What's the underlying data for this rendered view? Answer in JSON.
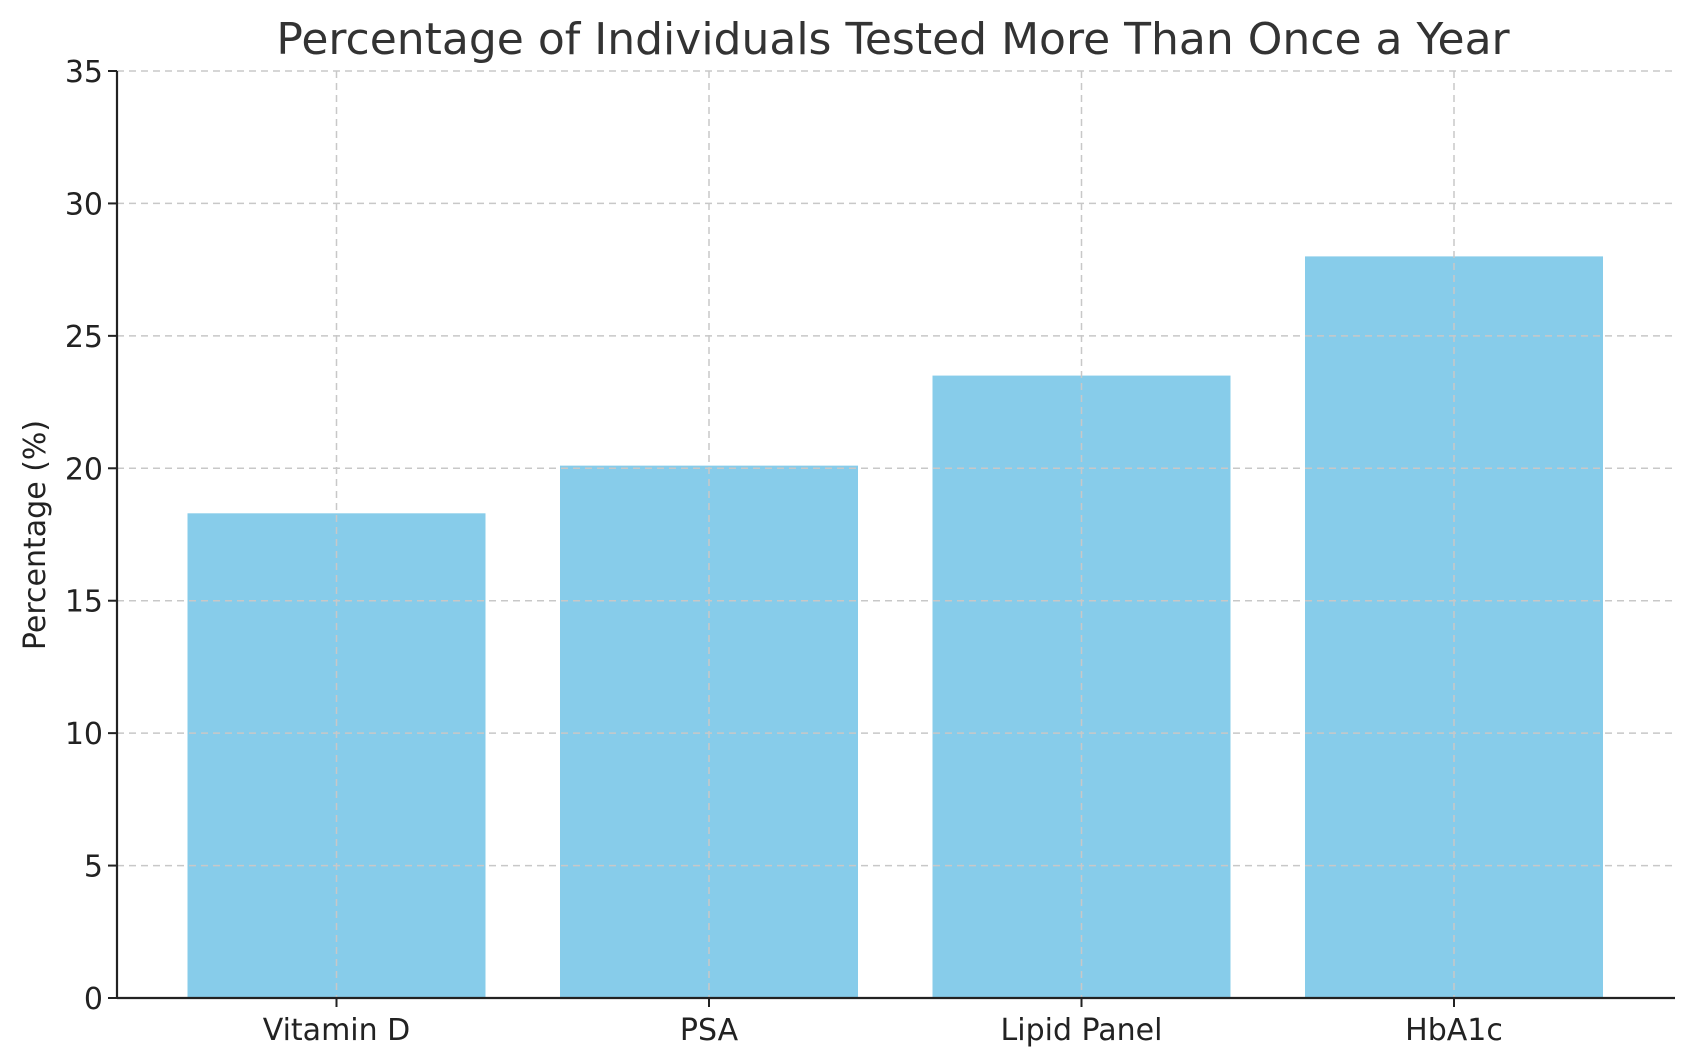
{
  "chart_data": {
    "type": "bar",
    "title": "Percentage of Individuals Tested More Than Once a Year",
    "xlabel": "",
    "ylabel": "Percentage (%)",
    "categories": [
      "Vitamin D",
      "PSA",
      "Lipid Panel",
      "HbA1c"
    ],
    "values": [
      18.3,
      20.1,
      23.5,
      28.0
    ],
    "ylim": [
      0,
      35
    ],
    "yticks": [
      0,
      5,
      10,
      15,
      20,
      25,
      30,
      35
    ],
    "grid": true,
    "bar_color": "#87CCEA"
  }
}
